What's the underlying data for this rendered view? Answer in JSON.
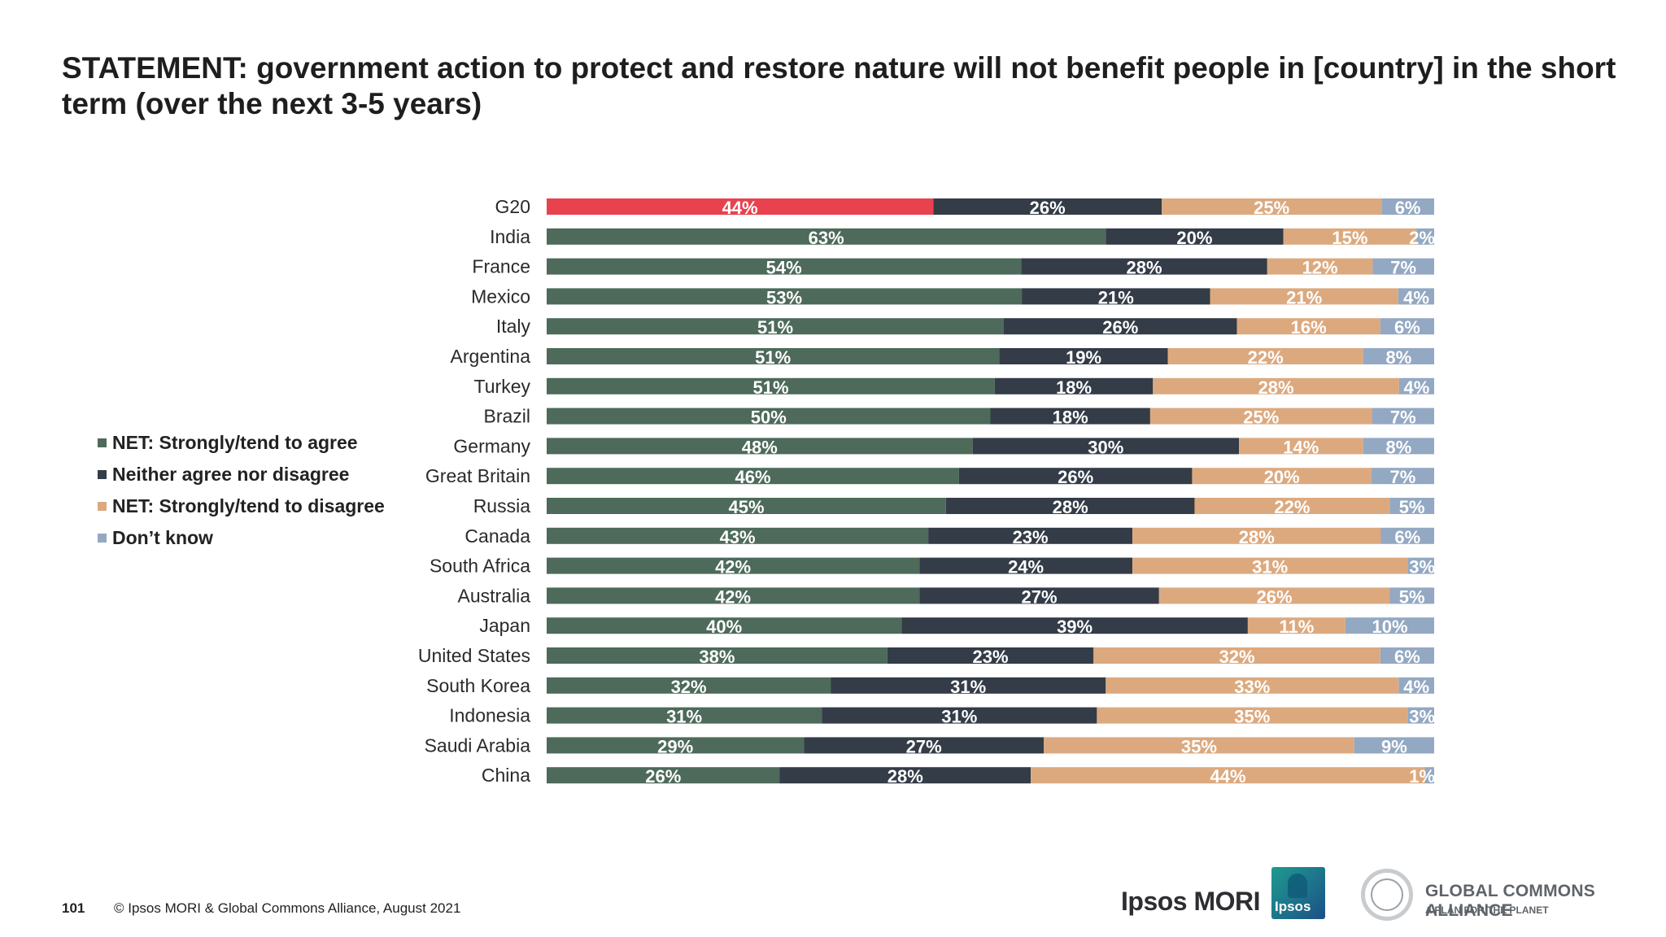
{
  "title": "STATEMENT: government action to protect and restore nature will not benefit people in [country] in the short term (over the next 3-5 years)",
  "legend": [
    {
      "label": "NET: Strongly/tend to agree",
      "color": "#4d6a5b"
    },
    {
      "label": "Neither agree nor disagree",
      "color": "#333c47"
    },
    {
      "label": "NET: Strongly/tend to disagree",
      "color": "#dca97f"
    },
    {
      "label": "Don’t know",
      "color": "#93a8c2"
    }
  ],
  "footer": {
    "page_number": "101",
    "copyright": "© Ipsos MORI & Global Commons Alliance, August 2021"
  },
  "logos": {
    "ipsos_mori": "Ipsos MORI",
    "ipsos_box": "Ipsos",
    "gca_name": "GLOBAL COMMONS ALLIANCE",
    "gca_tagline": "A PLAN FOR THE PLANET"
  },
  "chart_data": {
    "type": "bar",
    "orientation": "horizontal",
    "stacked": true,
    "categories": [
      "G20",
      "India",
      "France",
      "Mexico",
      "Italy",
      "Argentina",
      "Turkey",
      "Brazil",
      "Germany",
      "Great Britain",
      "Russia",
      "Canada",
      "South Africa",
      "Australia",
      "Japan",
      "United States",
      "South Korea",
      "Indonesia",
      "Saudi Arabia",
      "China"
    ],
    "series": [
      {
        "name": "NET: Strongly/tend to agree",
        "color": "#4d6a5b",
        "highlight_color": "#e8424f",
        "values": [
          44,
          63,
          54,
          53,
          51,
          51,
          51,
          50,
          48,
          46,
          45,
          43,
          42,
          42,
          40,
          38,
          32,
          31,
          29,
          26
        ]
      },
      {
        "name": "Neither agree nor disagree",
        "color": "#333c47",
        "values": [
          26,
          20,
          28,
          21,
          26,
          19,
          18,
          18,
          30,
          26,
          28,
          23,
          24,
          27,
          39,
          23,
          31,
          31,
          27,
          28
        ]
      },
      {
        "name": "NET: Strongly/tend to disagree",
        "color": "#dca97f",
        "values": [
          25,
          15,
          12,
          21,
          16,
          22,
          28,
          25,
          14,
          20,
          22,
          28,
          31,
          26,
          11,
          32,
          33,
          35,
          35,
          44
        ]
      },
      {
        "name": "Don’t know",
        "color": "#93a8c2",
        "values": [
          6,
          2,
          7,
          4,
          6,
          8,
          4,
          7,
          8,
          7,
          5,
          6,
          3,
          5,
          10,
          6,
          4,
          3,
          9,
          1
        ]
      }
    ],
    "value_suffix": "%",
    "highlight_category": "G20",
    "grid": false,
    "legend_position": "left"
  }
}
